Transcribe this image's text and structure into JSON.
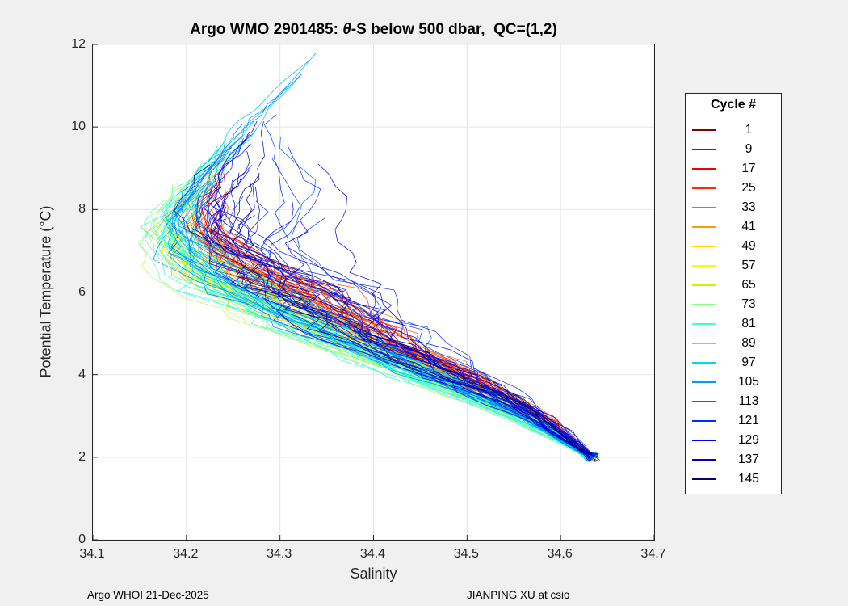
{
  "figure": {
    "background_color": "#f0f0f0",
    "title": {
      "prefix": "Argo WMO 2901485: ",
      "theta": "θ",
      "suffix": "-S below 500 dbar,  QC=(1,2)"
    },
    "footer": {
      "left": "Argo WHOI 21-Dec-2025",
      "right": "JIANPING XU at csio"
    }
  },
  "chart_data": {
    "type": "line",
    "title": "Argo WMO 2901485: θ-S below 500 dbar,  QC=(1,2)",
    "xlabel": "Salinity",
    "ylabel": "Potential Temperature (°C)",
    "xlim": [
      34.1,
      34.7
    ],
    "ylim": [
      0,
      12
    ],
    "xticks": [
      34.1,
      34.2,
      34.3,
      34.4,
      34.5,
      34.6,
      34.7
    ],
    "yticks": [
      0,
      2,
      4,
      6,
      8,
      10,
      12
    ],
    "grid": true,
    "legend": {
      "title": "Cycle #",
      "position": "outside-right",
      "entries": [
        {
          "label": "1",
          "color": "#800000"
        },
        {
          "label": "9",
          "color": "#B80000"
        },
        {
          "label": "17",
          "color": "#F10000"
        },
        {
          "label": "25",
          "color": "#FF2B00"
        },
        {
          "label": "33",
          "color": "#FF6300"
        },
        {
          "label": "41",
          "color": "#FF9C00"
        },
        {
          "label": "49",
          "color": "#FFD400"
        },
        {
          "label": "57",
          "color": "#F1FF00"
        },
        {
          "label": "65",
          "color": "#B8FF00"
        },
        {
          "label": "73",
          "color": "#80FF80"
        },
        {
          "label": "81",
          "color": "#47FFB8"
        },
        {
          "label": "89",
          "color": "#0EFFF1"
        },
        {
          "label": "97",
          "color": "#00D4FF"
        },
        {
          "label": "105",
          "color": "#009CFF"
        },
        {
          "label": "113",
          "color": "#0063FF"
        },
        {
          "label": "121",
          "color": "#002BFF"
        },
        {
          "label": "129",
          "color": "#0000F1"
        },
        {
          "label": "137",
          "color": "#0000B8"
        },
        {
          "label": "145",
          "color": "#000080"
        }
      ]
    },
    "profiles": {
      "count": 145,
      "cycle_first": 1,
      "cycle_last": 145,
      "colormap": "jet reversed (cycle 1 = dark red, cycle 145 = dark navy)",
      "convergence_point": {
        "salinity": 34.63,
        "theta": 2.0
      },
      "top_extent": {
        "salinity": 34.35,
        "theta": 12.0
      },
      "left_extent": {
        "salinity": 34.15,
        "theta": 7.5
      }
    },
    "backbone": {
      "description": "Estimated mean θ–S curve of the profile bundle with salinity half-spread at each potential temperature, read from the plot",
      "theta": [
        2.0,
        2.5,
        3.0,
        3.5,
        4.0,
        4.5,
        5.0,
        5.5,
        6.0,
        6.5,
        7.0,
        7.5,
        8.0,
        8.5,
        9.0,
        9.5,
        10.0,
        10.5,
        11.0,
        11.5,
        12.0
      ],
      "salinity_center": [
        34.632,
        34.6,
        34.565,
        34.52,
        34.468,
        34.42,
        34.372,
        34.33,
        34.285,
        34.245,
        34.218,
        34.202,
        34.205,
        34.218,
        34.235,
        34.252,
        34.27,
        34.292,
        34.312,
        34.332,
        34.35
      ],
      "salinity_halfwidth": [
        0.006,
        0.018,
        0.03,
        0.045,
        0.058,
        0.07,
        0.082,
        0.092,
        0.1,
        0.085,
        0.065,
        0.052,
        0.042,
        0.036,
        0.03,
        0.027,
        0.025,
        0.02,
        0.016,
        0.012,
        0.01
      ]
    }
  }
}
